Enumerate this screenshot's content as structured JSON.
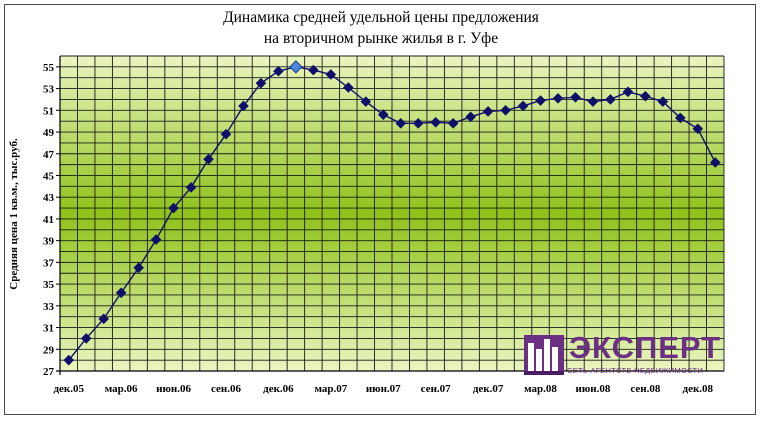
{
  "chart_data": {
    "type": "line",
    "title": [
      "Динамика средней удельной цены предложения",
      "на вторичном рынке жилья в г. Уфе"
    ],
    "ylabel": "Средняя цена 1 кв.м., тыс.руб.",
    "xlabel": "",
    "ylim": [
      27,
      56
    ],
    "yticks": [
      27,
      29,
      31,
      33,
      35,
      37,
      39,
      41,
      43,
      45,
      47,
      49,
      51,
      53,
      55
    ],
    "xtick_labels": [
      "дек.05",
      "мар.06",
      "июн.06",
      "сен.06",
      "дек.06",
      "мар.07",
      "июн.07",
      "сен.07",
      "дек.07",
      "мар.08",
      "июн.08",
      "сен.08",
      "дек.08"
    ],
    "grid": true,
    "legend": "none",
    "categories": [
      "дек.05",
      "янв.06",
      "фев.06",
      "мар.06",
      "апр.06",
      "май.06",
      "июн.06",
      "июл.06",
      "авг.06",
      "сен.06",
      "окт.06",
      "ноя.06",
      "дек.06",
      "янв.07",
      "фев.07",
      "мар.07",
      "апр.07",
      "май.07",
      "июн.07",
      "июл.07",
      "авг.07",
      "сен.07",
      "окт.07",
      "ноя.07",
      "дек.07",
      "янв.08",
      "фев.08",
      "мар.08",
      "апр.08",
      "май.08",
      "июн.08",
      "июл.08",
      "авг.08",
      "сен.08",
      "окт.08",
      "ноя.08",
      "дек.08",
      "янв.09"
    ],
    "series": [
      {
        "values": [
          28.0,
          30.0,
          31.8,
          34.2,
          36.5,
          39.1,
          42.0,
          43.9,
          46.5,
          48.8,
          51.4,
          53.5,
          54.6,
          55.0,
          54.7,
          54.3,
          53.1,
          51.8,
          50.6,
          49.8,
          49.8,
          49.9,
          49.8,
          50.4,
          50.9,
          51.0,
          51.4,
          51.9,
          52.1,
          52.2,
          51.8,
          52.0,
          52.7,
          52.3,
          51.8,
          50.3,
          49.3,
          46.2
        ],
        "highlight_index": 13
      }
    ],
    "colors": {
      "line": "#0d0d6b",
      "marker": "#10106a",
      "highlight": "#4f86e0",
      "band_outer": "#eaf5c0",
      "band_center": "#8fc21a"
    }
  },
  "logo": {
    "word": "ЭКСПЕРТ",
    "sub": "СЕТЬ АГЕНТСТВ НЕДВИЖИМОСТИ"
  }
}
